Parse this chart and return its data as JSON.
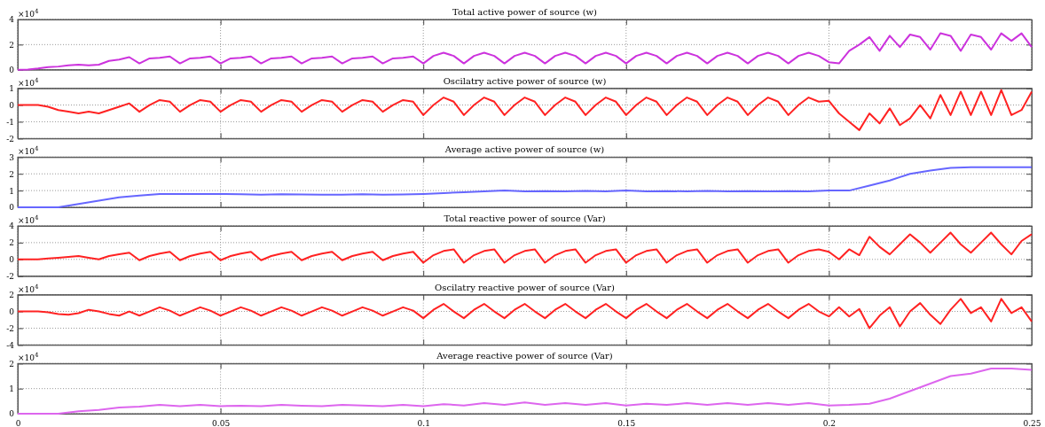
{
  "chart_data": [
    {
      "type": "line",
      "title": "Total active power of source (w)",
      "ylabel": "×10$^{4}$",
      "xlim": [
        0,
        0.25
      ],
      "xticks": [
        0,
        0.05,
        0.1,
        0.15,
        0.2,
        0.25
      ],
      "ylim": [
        0,
        4
      ],
      "yticks": [
        0,
        2,
        4
      ],
      "grid": true,
      "tick_labels": "y",
      "x": [
        0,
        0.0025,
        0.005,
        0.0075,
        0.01,
        0.0125,
        0.015,
        0.0175,
        0.02,
        0.0225,
        0.025,
        0.0275,
        0.03,
        0.0325,
        0.035,
        0.0375,
        0.04,
        0.0425,
        0.045,
        0.0475,
        0.05,
        0.0525,
        0.055,
        0.0575,
        0.06,
        0.0625,
        0.065,
        0.0675,
        0.07,
        0.0725,
        0.075,
        0.0775,
        0.08,
        0.0825,
        0.085,
        0.0875,
        0.09,
        0.0925,
        0.095,
        0.0975,
        0.1,
        0.1025,
        0.105,
        0.1075,
        0.11,
        0.1125,
        0.115,
        0.1175,
        0.12,
        0.1225,
        0.125,
        0.1275,
        0.13,
        0.1325,
        0.135,
        0.1375,
        0.14,
        0.1425,
        0.145,
        0.1475,
        0.15,
        0.1525,
        0.155,
        0.1575,
        0.16,
        0.1625,
        0.165,
        0.1675,
        0.17,
        0.1725,
        0.175,
        0.1775,
        0.18,
        0.1825,
        0.185,
        0.1875,
        0.19,
        0.1925,
        0.195,
        0.1975,
        0.2,
        0.2025,
        0.205,
        0.2075,
        0.21,
        0.2125,
        0.215,
        0.2175,
        0.22,
        0.2225,
        0.225,
        0.2275,
        0.23,
        0.2325,
        0.235,
        0.2375,
        0.24,
        0.2425,
        0.245,
        0.2475,
        0.25
      ],
      "series": [
        {
          "color": "#cc33dd",
          "values": [
            0,
            0.02,
            0.1,
            0.2,
            0.25,
            0.35,
            0.4,
            0.35,
            0.4,
            0.7,
            0.8,
            1.0,
            0.5,
            0.9,
            0.95,
            1.05,
            0.5,
            0.9,
            0.95,
            1.05,
            0.5,
            0.9,
            0.95,
            1.05,
            0.5,
            0.9,
            0.95,
            1.05,
            0.5,
            0.9,
            0.95,
            1.05,
            0.5,
            0.9,
            0.95,
            1.05,
            0.5,
            0.9,
            0.95,
            1.05,
            0.5,
            1.1,
            1.35,
            1.1,
            0.5,
            1.1,
            1.35,
            1.1,
            0.5,
            1.1,
            1.35,
            1.1,
            0.5,
            1.1,
            1.35,
            1.1,
            0.5,
            1.1,
            1.35,
            1.1,
            0.5,
            1.1,
            1.35,
            1.1,
            0.5,
            1.1,
            1.35,
            1.1,
            0.5,
            1.1,
            1.35,
            1.1,
            0.5,
            1.1,
            1.35,
            1.1,
            0.5,
            1.1,
            1.35,
            1.1,
            0.6,
            0.5,
            1.5,
            2.0,
            2.6,
            1.5,
            2.7,
            1.8,
            2.8,
            2.6,
            1.6,
            2.9,
            2.7,
            1.5,
            2.8,
            2.6,
            1.6,
            2.9,
            2.3,
            2.9,
            1.8
          ]
        }
      ]
    },
    {
      "type": "line",
      "title": "Oscilatry active power of source (w)",
      "ylabel": "×10$^{4}$",
      "xlim": [
        0,
        0.25
      ],
      "xticks": [
        0,
        0.05,
        0.1,
        0.15,
        0.2,
        0.25
      ],
      "ylim": [
        -2,
        1
      ],
      "yticks": [
        -2,
        -1,
        0,
        1
      ],
      "grid": true,
      "tick_labels": "y",
      "x": [
        0,
        0.0025,
        0.005,
        0.0075,
        0.01,
        0.0125,
        0.015,
        0.0175,
        0.02,
        0.0225,
        0.025,
        0.0275,
        0.03,
        0.0325,
        0.035,
        0.0375,
        0.04,
        0.0425,
        0.045,
        0.0475,
        0.05,
        0.0525,
        0.055,
        0.0575,
        0.06,
        0.0625,
        0.065,
        0.0675,
        0.07,
        0.0725,
        0.075,
        0.0775,
        0.08,
        0.0825,
        0.085,
        0.0875,
        0.09,
        0.0925,
        0.095,
        0.0975,
        0.1,
        0.1025,
        0.105,
        0.1075,
        0.11,
        0.1125,
        0.115,
        0.1175,
        0.12,
        0.1225,
        0.125,
        0.1275,
        0.13,
        0.1325,
        0.135,
        0.1375,
        0.14,
        0.1425,
        0.145,
        0.1475,
        0.15,
        0.1525,
        0.155,
        0.1575,
        0.16,
        0.1625,
        0.165,
        0.1675,
        0.17,
        0.1725,
        0.175,
        0.1775,
        0.18,
        0.1825,
        0.185,
        0.1875,
        0.19,
        0.1925,
        0.195,
        0.1975,
        0.2,
        0.2025,
        0.205,
        0.2075,
        0.21,
        0.2125,
        0.215,
        0.2175,
        0.22,
        0.2225,
        0.225,
        0.2275,
        0.23,
        0.2325,
        0.235,
        0.2375,
        0.24,
        0.2425,
        0.245,
        0.2475,
        0.25
      ],
      "series": [
        {
          "color": "#ff2222",
          "values": [
            0,
            0,
            0,
            -0.1,
            -0.3,
            -0.4,
            -0.5,
            -0.4,
            -0.5,
            -0.3,
            -0.1,
            0.1,
            -0.4,
            0.0,
            0.3,
            0.2,
            -0.4,
            0.0,
            0.3,
            0.2,
            -0.4,
            0.0,
            0.3,
            0.2,
            -0.4,
            0.0,
            0.3,
            0.2,
            -0.4,
            0.0,
            0.3,
            0.2,
            -0.4,
            0.0,
            0.3,
            0.2,
            -0.4,
            0.0,
            0.3,
            0.2,
            -0.6,
            0.0,
            0.45,
            0.2,
            -0.6,
            0.0,
            0.45,
            0.2,
            -0.6,
            0.0,
            0.45,
            0.2,
            -0.6,
            0.0,
            0.45,
            0.2,
            -0.6,
            0.0,
            0.45,
            0.2,
            -0.6,
            0.0,
            0.45,
            0.2,
            -0.6,
            0.0,
            0.45,
            0.2,
            -0.6,
            0.0,
            0.45,
            0.2,
            -0.6,
            0.0,
            0.45,
            0.2,
            -0.6,
            0.0,
            0.45,
            0.2,
            0.25,
            -0.5,
            -1.0,
            -1.5,
            -0.5,
            -1.1,
            -0.2,
            -1.2,
            -0.8,
            0.0,
            -0.8,
            0.6,
            -0.6,
            0.8,
            -0.6,
            0.8,
            -0.6,
            0.9,
            -0.6,
            -0.3,
            0.8
          ]
        }
      ]
    },
    {
      "type": "line",
      "title": "Average active power of source (w)",
      "ylabel": "×10$^{4}$",
      "xlim": [
        0,
        0.25
      ],
      "xticks": [
        0,
        0.05,
        0.1,
        0.15,
        0.2,
        0.25
      ],
      "ylim": [
        0,
        3
      ],
      "yticks": [
        0,
        1,
        2,
        3
      ],
      "grid": true,
      "tick_labels": "y",
      "x": [
        0,
        0.005,
        0.01,
        0.015,
        0.02,
        0.025,
        0.03,
        0.035,
        0.04,
        0.045,
        0.05,
        0.055,
        0.06,
        0.065,
        0.07,
        0.075,
        0.08,
        0.085,
        0.09,
        0.095,
        0.1,
        0.105,
        0.11,
        0.115,
        0.12,
        0.125,
        0.13,
        0.135,
        0.14,
        0.145,
        0.15,
        0.155,
        0.16,
        0.165,
        0.17,
        0.175,
        0.18,
        0.185,
        0.19,
        0.195,
        0.2,
        0.205,
        0.21,
        0.215,
        0.22,
        0.225,
        0.23,
        0.235,
        0.24,
        0.245,
        0.25
      ],
      "series": [
        {
          "color": "#6666ff",
          "values": [
            0,
            0,
            0,
            0.2,
            0.4,
            0.6,
            0.7,
            0.8,
            0.8,
            0.8,
            0.8,
            0.78,
            0.75,
            0.78,
            0.77,
            0.75,
            0.76,
            0.78,
            0.75,
            0.77,
            0.8,
            0.85,
            0.9,
            0.95,
            1.0,
            0.95,
            0.97,
            0.95,
            0.98,
            0.95,
            1.0,
            0.95,
            0.97,
            0.95,
            0.98,
            0.95,
            0.97,
            0.95,
            0.97,
            0.95,
            1.0,
            1.0,
            1.3,
            1.6,
            2.0,
            2.2,
            2.35,
            2.4,
            2.4,
            2.4,
            2.4
          ]
        }
      ]
    },
    {
      "type": "line",
      "title": "Total reactive power of source (Var)",
      "ylabel": "×10$^{4}$",
      "xlim": [
        0,
        0.25
      ],
      "xticks": [
        0,
        0.05,
        0.1,
        0.15,
        0.2,
        0.25
      ],
      "ylim": [
        -2,
        4
      ],
      "yticks": [
        -2,
        0,
        2,
        4
      ],
      "grid": true,
      "tick_labels": "y",
      "x": [
        0,
        0.0025,
        0.005,
        0.0075,
        0.01,
        0.0125,
        0.015,
        0.0175,
        0.02,
        0.0225,
        0.025,
        0.0275,
        0.03,
        0.0325,
        0.035,
        0.0375,
        0.04,
        0.0425,
        0.045,
        0.0475,
        0.05,
        0.0525,
        0.055,
        0.0575,
        0.06,
        0.0625,
        0.065,
        0.0675,
        0.07,
        0.0725,
        0.075,
        0.0775,
        0.08,
        0.0825,
        0.085,
        0.0875,
        0.09,
        0.0925,
        0.095,
        0.0975,
        0.1,
        0.1025,
        0.105,
        0.1075,
        0.11,
        0.1125,
        0.115,
        0.1175,
        0.12,
        0.1225,
        0.125,
        0.1275,
        0.13,
        0.1325,
        0.135,
        0.1375,
        0.14,
        0.1425,
        0.145,
        0.1475,
        0.15,
        0.1525,
        0.155,
        0.1575,
        0.16,
        0.1625,
        0.165,
        0.1675,
        0.17,
        0.1725,
        0.175,
        0.1775,
        0.18,
        0.1825,
        0.185,
        0.1875,
        0.19,
        0.1925,
        0.195,
        0.1975,
        0.2,
        0.2025,
        0.205,
        0.2075,
        0.21,
        0.2125,
        0.215,
        0.2175,
        0.22,
        0.2225,
        0.225,
        0.2275,
        0.23,
        0.2325,
        0.235,
        0.2375,
        0.24,
        0.2425,
        0.245,
        0.2475,
        0.25
      ],
      "series": [
        {
          "color": "#ff2222",
          "values": [
            0,
            0,
            0,
            0.1,
            0.2,
            0.3,
            0.4,
            0.2,
            0.0,
            0.4,
            0.6,
            0.8,
            -0.1,
            0.4,
            0.7,
            0.9,
            -0.1,
            0.4,
            0.7,
            0.9,
            -0.1,
            0.4,
            0.7,
            0.9,
            -0.1,
            0.4,
            0.7,
            0.9,
            -0.1,
            0.4,
            0.7,
            0.9,
            -0.1,
            0.4,
            0.7,
            0.9,
            -0.1,
            0.4,
            0.7,
            0.9,
            -0.4,
            0.5,
            1.0,
            1.2,
            -0.4,
            0.5,
            1.0,
            1.2,
            -0.4,
            0.5,
            1.0,
            1.2,
            -0.4,
            0.5,
            1.0,
            1.2,
            -0.4,
            0.5,
            1.0,
            1.2,
            -0.4,
            0.5,
            1.0,
            1.2,
            -0.4,
            0.5,
            1.0,
            1.2,
            -0.4,
            0.5,
            1.0,
            1.2,
            -0.4,
            0.5,
            1.0,
            1.2,
            -0.4,
            0.5,
            1.0,
            1.2,
            0.9,
            0.0,
            1.2,
            0.5,
            2.7,
            1.5,
            0.6,
            1.8,
            3.0,
            2.0,
            0.8,
            2.0,
            3.2,
            1.8,
            0.8,
            2.0,
            3.2,
            1.8,
            0.6,
            2.2,
            3.0
          ]
        }
      ]
    },
    {
      "type": "line",
      "title": "Oscilatry reactive power of source (Var)",
      "ylabel": "×10$^{4}$",
      "xlim": [
        0,
        0.25
      ],
      "xticks": [
        0,
        0.05,
        0.1,
        0.15,
        0.2,
        0.25
      ],
      "ylim": [
        -4,
        2
      ],
      "yticks": [
        -4,
        -2,
        0,
        2
      ],
      "grid": true,
      "tick_labels": "y",
      "x": [
        0,
        0.0025,
        0.005,
        0.0075,
        0.01,
        0.0125,
        0.015,
        0.0175,
        0.02,
        0.0225,
        0.025,
        0.0275,
        0.03,
        0.0325,
        0.035,
        0.0375,
        0.04,
        0.0425,
        0.045,
        0.0475,
        0.05,
        0.0525,
        0.055,
        0.0575,
        0.06,
        0.0625,
        0.065,
        0.0675,
        0.07,
        0.0725,
        0.075,
        0.0775,
        0.08,
        0.0825,
        0.085,
        0.0875,
        0.09,
        0.0925,
        0.095,
        0.0975,
        0.1,
        0.1025,
        0.105,
        0.1075,
        0.11,
        0.1125,
        0.115,
        0.1175,
        0.12,
        0.1225,
        0.125,
        0.1275,
        0.13,
        0.1325,
        0.135,
        0.1375,
        0.14,
        0.1425,
        0.145,
        0.1475,
        0.15,
        0.1525,
        0.155,
        0.1575,
        0.16,
        0.1625,
        0.165,
        0.1675,
        0.17,
        0.1725,
        0.175,
        0.1775,
        0.18,
        0.1825,
        0.185,
        0.1875,
        0.19,
        0.1925,
        0.195,
        0.1975,
        0.2,
        0.2025,
        0.205,
        0.2075,
        0.21,
        0.2125,
        0.215,
        0.2175,
        0.22,
        0.2225,
        0.225,
        0.2275,
        0.23,
        0.2325,
        0.235,
        0.2375,
        0.24,
        0.2425,
        0.245,
        0.2475,
        0.25
      ],
      "series": [
        {
          "color": "#ff2222",
          "values": [
            0,
            0,
            0,
            -0.1,
            -0.3,
            -0.4,
            -0.2,
            0.2,
            0.0,
            -0.3,
            -0.5,
            0.0,
            -0.5,
            0.0,
            0.5,
            0.1,
            -0.5,
            0.0,
            0.5,
            0.1,
            -0.5,
            0.0,
            0.5,
            0.1,
            -0.5,
            0.0,
            0.5,
            0.1,
            -0.5,
            0.0,
            0.5,
            0.1,
            -0.5,
            0.0,
            0.5,
            0.1,
            -0.5,
            0.0,
            0.5,
            0.1,
            -0.8,
            0.2,
            0.9,
            0.0,
            -0.8,
            0.2,
            0.9,
            0.0,
            -0.8,
            0.2,
            0.9,
            0.0,
            -0.8,
            0.2,
            0.9,
            0.0,
            -0.8,
            0.2,
            0.9,
            0.0,
            -0.8,
            0.2,
            0.9,
            0.0,
            -0.8,
            0.2,
            0.9,
            0.0,
            -0.8,
            0.2,
            0.9,
            0.0,
            -0.8,
            0.2,
            0.9,
            0.0,
            -0.8,
            0.2,
            0.9,
            0.0,
            -0.6,
            0.5,
            -0.6,
            0.3,
            -2.0,
            -0.5,
            0.5,
            -1.8,
            0.0,
            1.0,
            -0.4,
            -1.5,
            0.2,
            1.5,
            -0.2,
            0.5,
            -1.2,
            1.5,
            -0.2,
            0.5,
            -1.2
          ]
        }
      ]
    },
    {
      "type": "line",
      "title": "Average reactive power of source (Var)",
      "ylabel": "×10$^{4}$",
      "xlim": [
        0,
        0.25
      ],
      "xticks": [
        0,
        0.05,
        0.1,
        0.15,
        0.2,
        0.25
      ],
      "ylim": [
        0,
        2
      ],
      "yticks": [
        0,
        1,
        2
      ],
      "grid": true,
      "x": [
        0,
        0.005,
        0.01,
        0.015,
        0.02,
        0.025,
        0.03,
        0.035,
        0.04,
        0.045,
        0.05,
        0.055,
        0.06,
        0.065,
        0.07,
        0.075,
        0.08,
        0.085,
        0.09,
        0.095,
        0.1,
        0.105,
        0.11,
        0.115,
        0.12,
        0.125,
        0.13,
        0.135,
        0.14,
        0.145,
        0.15,
        0.155,
        0.16,
        0.165,
        0.17,
        0.175,
        0.18,
        0.185,
        0.19,
        0.195,
        0.2,
        0.205,
        0.21,
        0.215,
        0.22,
        0.225,
        0.23,
        0.235,
        0.24,
        0.245,
        0.25
      ],
      "series": [
        {
          "color": "#dd66ee",
          "values": [
            0,
            0,
            0,
            0.1,
            0.15,
            0.25,
            0.28,
            0.35,
            0.3,
            0.35,
            0.3,
            0.32,
            0.3,
            0.35,
            0.32,
            0.3,
            0.35,
            0.33,
            0.3,
            0.35,
            0.3,
            0.38,
            0.33,
            0.42,
            0.35,
            0.45,
            0.35,
            0.42,
            0.35,
            0.42,
            0.33,
            0.4,
            0.35,
            0.42,
            0.35,
            0.42,
            0.35,
            0.42,
            0.35,
            0.42,
            0.33,
            0.35,
            0.4,
            0.6,
            0.9,
            1.2,
            1.5,
            1.6,
            1.8,
            1.8,
            1.75
          ]
        }
      ]
    }
  ]
}
